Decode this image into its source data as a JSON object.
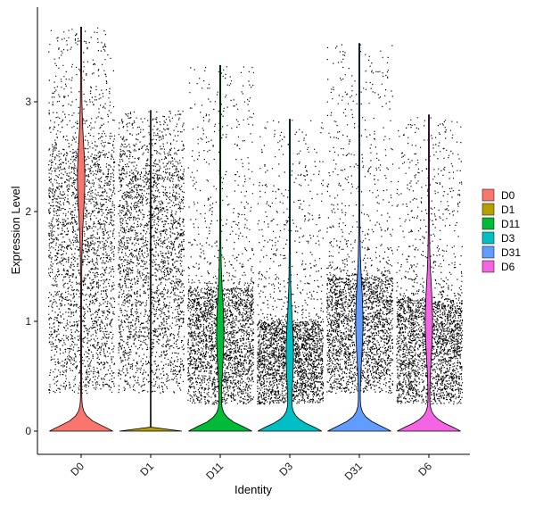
{
  "chart_data": {
    "type": "violin",
    "xlabel": "Identity",
    "ylabel": "Expression Level",
    "ylim": [
      -0.22,
      3.85
    ],
    "yticks": [
      0,
      1,
      2,
      3
    ],
    "ytick_labels": [
      "0",
      "1",
      "2",
      "3"
    ],
    "categories": [
      "D0",
      "D1",
      "D11",
      "D3",
      "D31",
      "D6"
    ],
    "legend_position": "right",
    "grid": false,
    "series": [
      {
        "name": "D0",
        "color": "#F8766D",
        "max": 3.68,
        "cloud_low": 0.35,
        "cloud_high": 2.5,
        "zero_width": 0.92,
        "peak_mode": 2.3
      },
      {
        "name": "D1",
        "color": "#B79F00",
        "max": 2.92,
        "cloud_low": 0.35,
        "cloud_high": 2.3,
        "zero_width": 0.92,
        "peak_mode": null
      },
      {
        "name": "D11",
        "color": "#00BA38",
        "max": 3.33,
        "cloud_low": 0.25,
        "cloud_high": 1.3,
        "zero_width": 0.92,
        "peak_mode": 0.9
      },
      {
        "name": "D3",
        "color": "#00BFC4",
        "max": 2.84,
        "cloud_low": 0.25,
        "cloud_high": 1.0,
        "zero_width": 0.92,
        "peak_mode": 0.7
      },
      {
        "name": "D31",
        "color": "#619CFF",
        "max": 3.53,
        "cloud_low": 0.35,
        "cloud_high": 1.4,
        "zero_width": 0.92,
        "peak_mode": 1.0
      },
      {
        "name": "D6",
        "color": "#F564E3",
        "max": 2.88,
        "cloud_low": 0.25,
        "cloud_high": 1.2,
        "zero_width": 0.92,
        "peak_mode": 1.0
      }
    ]
  }
}
